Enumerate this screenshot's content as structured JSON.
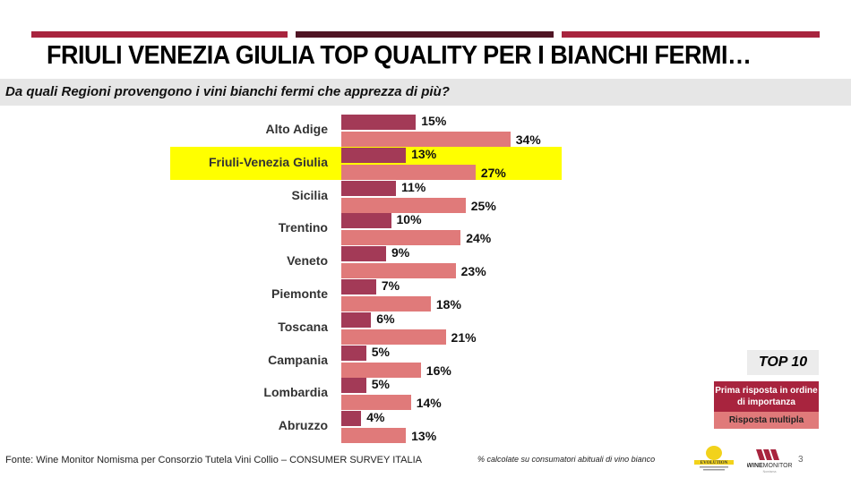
{
  "header": {
    "title": "FRIULI VENEZIA GIULIA TOP QUALITY PER I BIANCHI FERMI…",
    "subtitle": "Da quali Regioni provengono i vini bianchi fermi che apprezza di più?",
    "bar_colors": [
      "#a8243e",
      "#4f1424",
      "#a8243e"
    ]
  },
  "chart_data": {
    "type": "bar",
    "orientation": "horizontal",
    "title": "Da quali Regioni provengono i vini bianchi fermi che apprezza di più?",
    "categories": [
      "Alto Adige",
      "Friuli-Venezia Giulia",
      "Sicilia",
      "Trentino",
      "Veneto",
      "Piemonte",
      "Toscana",
      "Campania",
      "Lombardia",
      "Abruzzo"
    ],
    "series": [
      {
        "name": "Prima risposta in ordine di importanza",
        "color": "#a33a57",
        "values": [
          15,
          13,
          11,
          10,
          9,
          7,
          6,
          5,
          5,
          4
        ]
      },
      {
        "name": "Risposta multipla",
        "color": "#e07a7a",
        "values": [
          34,
          27,
          25,
          24,
          23,
          18,
          21,
          16,
          14,
          13
        ]
      }
    ],
    "value_suffix": "%",
    "highlighted_category": "Friuli-Venezia Giulia",
    "highlight_color": "#ffff00",
    "legend_position": "bottom-right",
    "grid": false
  },
  "legend": {
    "badge": "TOP 10",
    "first": "Prima risposta in ordine di importanza",
    "multi": "Risposta multipla"
  },
  "footer": {
    "source": "Fonte: Wine Monitor Nomisma per Consorzio Tutela Vini Collio – CONSUMER SURVEY ITALIA",
    "note": "% calcolate su consumatori abituali di vino bianco",
    "page": "3",
    "logo1": "EVOLUTION",
    "logo2": "WINEMONITOR"
  }
}
